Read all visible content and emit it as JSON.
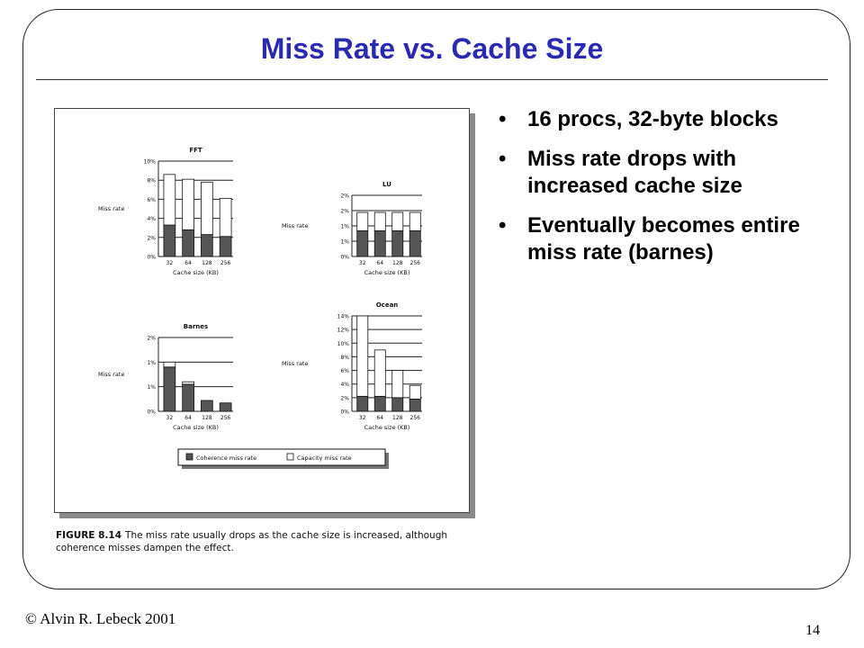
{
  "slide": {
    "title": "Miss Rate vs. Cache Size",
    "bullets": [
      "16 procs, 32-byte blocks",
      "Miss rate drops with increased cache size",
      "Eventually becomes entire miss rate (barnes)"
    ],
    "footer_left": "© Alvin R. Lebeck 2001",
    "page_number": "14"
  },
  "figure": {
    "caption_label": "FIGURE 8.14",
    "caption_text": "The miss rate usually drops as the cache size is increased, although coherence misses dampen the effect.",
    "legend": [
      "Coherence miss rate",
      "Capacity miss rate"
    ]
  },
  "chart_data": [
    {
      "type": "bar",
      "title": "FFT",
      "xlabel": "Cache size (KB)",
      "ylabel": "Miss rate",
      "categories": [
        "32",
        "64",
        "128",
        "256"
      ],
      "yticks": [
        "0%",
        "2%",
        "4%",
        "6%",
        "8%",
        "10%"
      ],
      "ylim": [
        0,
        10
      ],
      "series": [
        {
          "name": "Coherence miss rate",
          "values": [
            3.3,
            2.8,
            2.3,
            2.1
          ]
        },
        {
          "name": "Capacity miss rate",
          "values": [
            5.3,
            5.3,
            5.5,
            4.0
          ]
        }
      ]
    },
    {
      "type": "bar",
      "title": "LU",
      "xlabel": "Cache size (KB)",
      "ylabel": "Miss rate",
      "categories": [
        "32",
        "64",
        "128",
        "256"
      ],
      "yticks": [
        "0%",
        "1%",
        "1%",
        "2%",
        "2%"
      ],
      "ylim": [
        0,
        2.5
      ],
      "series": [
        {
          "name": "Coherence miss rate",
          "values": [
            1.05,
            1.05,
            1.05,
            1.05
          ]
        },
        {
          "name": "Capacity miss rate",
          "values": [
            0.75,
            0.75,
            0.75,
            0.75
          ]
        }
      ]
    },
    {
      "type": "bar",
      "title": "Barnes",
      "xlabel": "Cache size (KB)",
      "ylabel": "Miss rate",
      "categories": [
        "32",
        "64",
        "128",
        "256"
      ],
      "yticks": [
        "0%",
        "1%",
        "1%",
        "2%"
      ],
      "ylim": [
        0,
        1.5
      ],
      "series": [
        {
          "name": "Coherence miss rate",
          "values": [
            0.9,
            0.55,
            0.22,
            0.17
          ]
        },
        {
          "name": "Capacity miss rate",
          "values": [
            0.1,
            0.05,
            0.0,
            0.0
          ]
        }
      ]
    },
    {
      "type": "bar",
      "title": "Ocean",
      "xlabel": "Cache size (KB)",
      "ylabel": "Miss rate",
      "categories": [
        "32",
        "64",
        "128",
        "256"
      ],
      "yticks": [
        "0%",
        "2%",
        "4%",
        "6%",
        "8%",
        "10%",
        "12%",
        "14%"
      ],
      "ylim": [
        0,
        14
      ],
      "series": [
        {
          "name": "Coherence miss rate",
          "values": [
            2.2,
            2.2,
            2.0,
            1.8
          ]
        },
        {
          "name": "Capacity miss rate",
          "values": [
            11.8,
            6.8,
            4.0,
            2.0
          ]
        }
      ]
    }
  ]
}
